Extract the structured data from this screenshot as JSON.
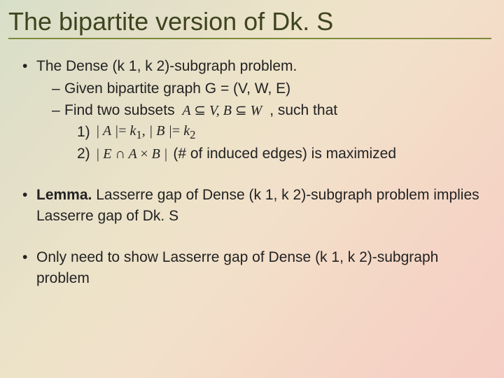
{
  "title": "The bipartite version of Dk. S",
  "bullets": {
    "problem_intro": "The Dense (k 1, k 2)-subgraph problem.",
    "given": "Given bipartite graph G = (V, W, E)",
    "find_prefix": "Find two subsets",
    "find_suffix": ", such that",
    "math_subset": "A ⊆ V, B ⊆ W",
    "row1_label": "1)",
    "row1_math": "| A |= k₁, | B |= k₂",
    "row2_label": "2)",
    "row2_math": "| E ∩ A × B |",
    "row2_suffix": "(# of induced edges) is maximized",
    "lemma_label": "Lemma.",
    "lemma_text": " Lasserre gap of Dense (k 1, k 2)-subgraph problem implies Lasserre gap of Dk. S",
    "only_need": "Only need to show Lasserre gap of Dense (k 1, k 2)-subgraph problem"
  },
  "style": {
    "title_color": "#3e441f",
    "underline_color": "#7d8a3a",
    "title_fontsize": 36,
    "body_fontsize": 21
  }
}
